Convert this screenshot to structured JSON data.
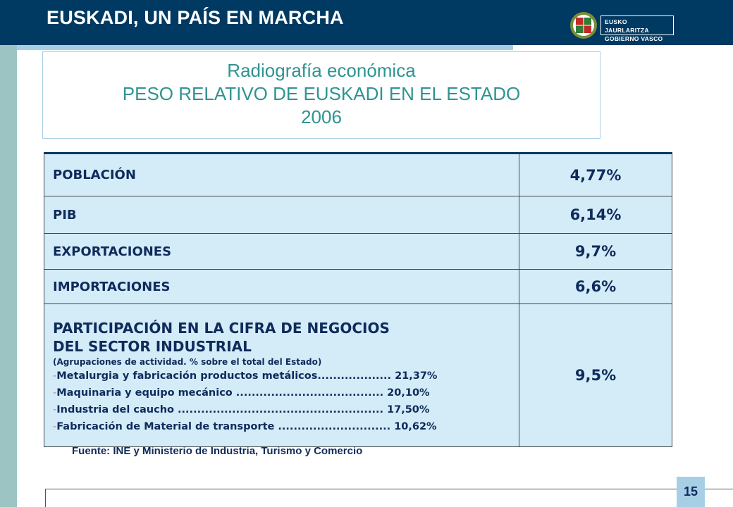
{
  "header": {
    "title": "EUSKADI, UN PAÍS EN MARCHA",
    "logo_line1": "EUSKO JAURLARITZA",
    "logo_line2": "GOBIERNO VASCO"
  },
  "title_box": {
    "line1": "Radiografía económica",
    "line2": "PESO RELATIVO DE EUSKADI EN EL ESTADO",
    "line3": "2006"
  },
  "table": {
    "rows": [
      {
        "label": "POBLACIÓN",
        "value": "4,77%"
      },
      {
        "label": "PIB",
        "value": "6,14%"
      },
      {
        "label": "EXPORTACIONES",
        "value": "9,7%"
      },
      {
        "label": "IMPORTACIONES",
        "value": "6,6%"
      }
    ],
    "industry": {
      "title_line1": "PARTICIPACIÓN EN LA CIFRA DE NEGOCIOS",
      "title_line2": "DEL SECTOR INDUSTRIAL",
      "note": "(Agrupaciones de actividad. % sobre el total del Estado)",
      "items": [
        "Metalurgia y fabricación productos metálicos................... 21,37%",
        "Maquinaria y equipo mecánico ...................................... 20,10%",
        "Industria del caucho ..................................................... 17,50%",
        "Fabricación de Material de transporte ............................. 10,62%"
      ],
      "value": "9,5%"
    }
  },
  "source": "Fuente: INE y Ministerio de Industria, Turismo y Comercio",
  "page_number": "15",
  "colors": {
    "header_bg": "#003A63",
    "accent": "#A6CFE6",
    "title_text": "#2E9491",
    "table_bg": "#D4ECF8",
    "text_dark": "#0F2B5B"
  }
}
